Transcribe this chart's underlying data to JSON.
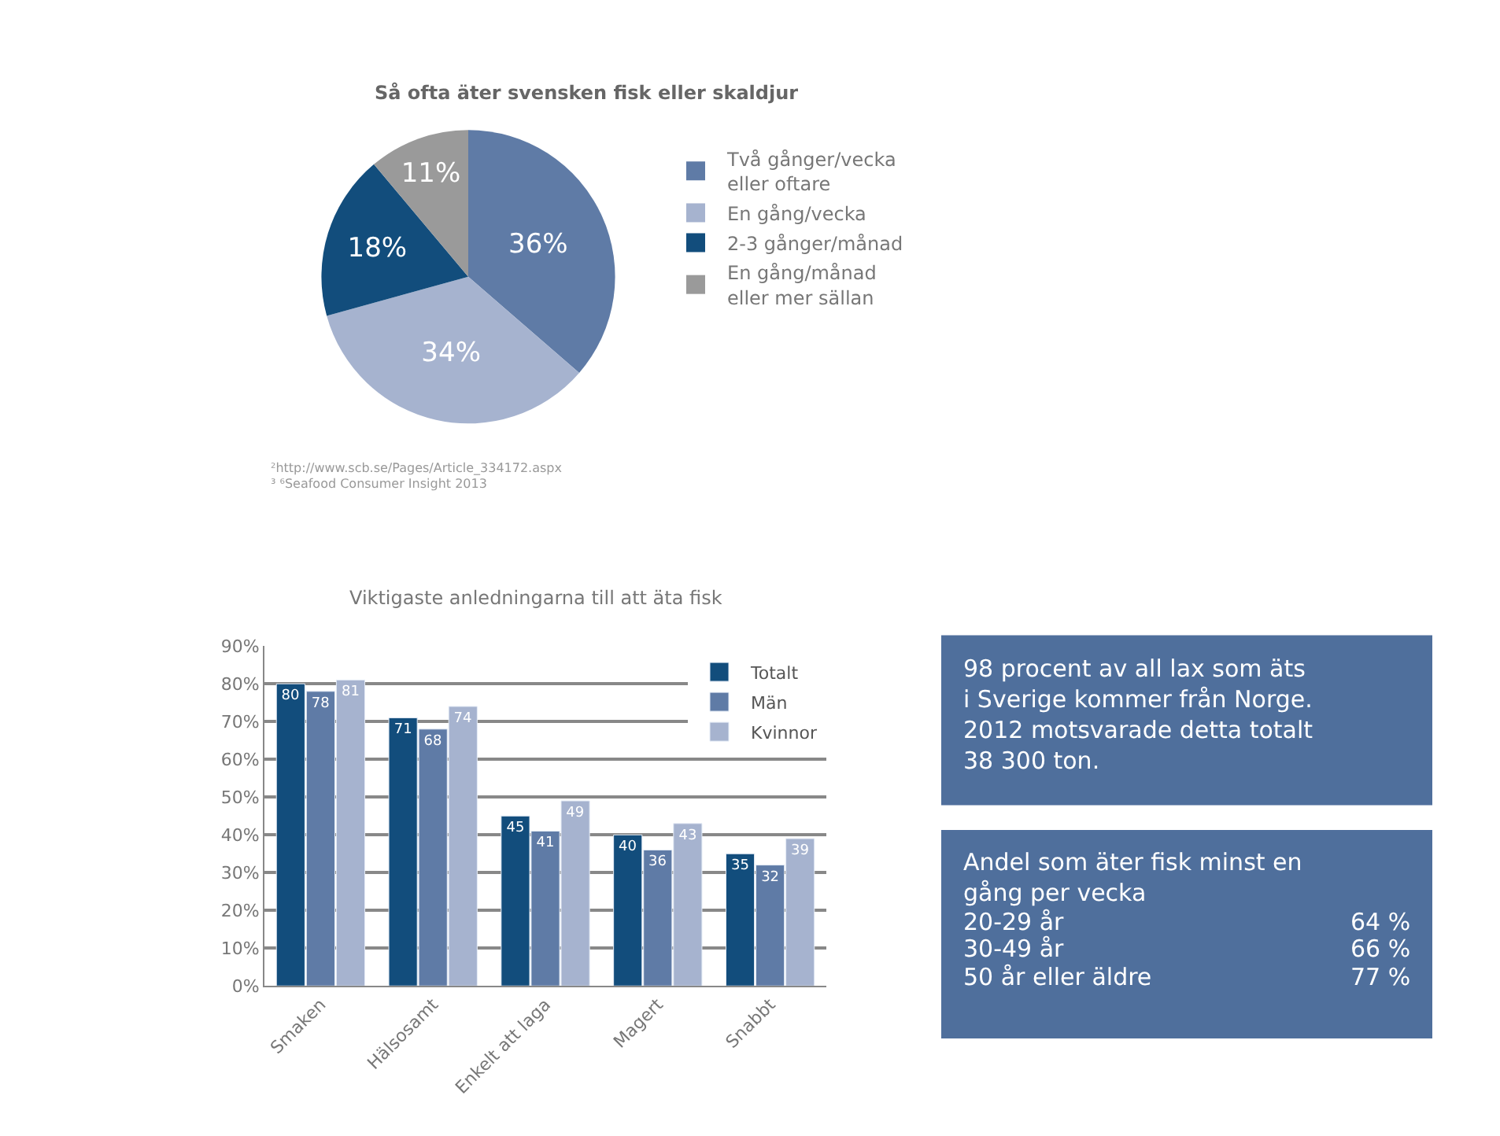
{
  "chart_data": [
    {
      "type": "pie",
      "title": "Så ofta äter svensken fisk eller skaldjur",
      "categories": [
        "Två gånger/vecka\neller oftare",
        "En gång/vecka",
        "2-3 gånger/månad",
        "En gång/månad\neller mer sällan"
      ],
      "values": [
        36,
        34,
        18,
        11
      ],
      "value_labels": [
        "36%",
        "34%",
        "18%",
        "11%"
      ],
      "colors": [
        "#5f7ba6",
        "#a6b3cf",
        "#124d7c",
        "#9a9a9a"
      ],
      "legend": "right",
      "annotations": [
        "²http://www.scb.se/Pages/Article_334172.aspx",
        "³ ⁶Seafood Consumer Insight 2013"
      ]
    },
    {
      "type": "bar",
      "title": "Viktigaste anledningarna till att äta fisk",
      "categories": [
        "Smaken",
        "Hälsosamt",
        "Enkelt att laga",
        "Magert",
        "Snabbt"
      ],
      "series": [
        {
          "name": "Totalt",
          "color": "#124d7c",
          "values": [
            80,
            71,
            45,
            40,
            35
          ]
        },
        {
          "name": "Män",
          "color": "#5f7ba6",
          "values": [
            78,
            68,
            41,
            36,
            32
          ]
        },
        {
          "name": "Kvinnor",
          "color": "#a6b3cf",
          "values": [
            81,
            74,
            49,
            43,
            39
          ]
        }
      ],
      "ylim": [
        0,
        90
      ],
      "yticks": [
        {
          "value": 0,
          "label": "0%"
        },
        {
          "value": 10,
          "label": "10%"
        },
        {
          "value": 20,
          "label": "20%"
        },
        {
          "value": 30,
          "label": "30%"
        },
        {
          "value": 40,
          "label": "40%"
        },
        {
          "value": 50,
          "label": "50%"
        },
        {
          "value": 60,
          "label": "60%"
        },
        {
          "value": 70,
          "label": "70%"
        },
        {
          "value": 80,
          "label": "80%"
        },
        {
          "value": 90,
          "label": "90%"
        }
      ],
      "grid": "y",
      "legend": "top right",
      "data_labels": true
    },
    {
      "type": "other",
      "annotations": [
        "98 procent av all lax som äts\ni Sverige kommer från Norge.\n2012 motsvarade detta totalt\n38 300 ton."
      ],
      "color": "#4f6f9c"
    },
    {
      "type": "other",
      "title": "Andel som äter fisk minst en\ngång per vecka",
      "categories": [
        "20-29 år",
        "30-49 år",
        "50 år eller äldre"
      ],
      "value_labels": [
        "64 %",
        "66 %",
        "77 %"
      ],
      "color": "#4f6f9c"
    }
  ]
}
